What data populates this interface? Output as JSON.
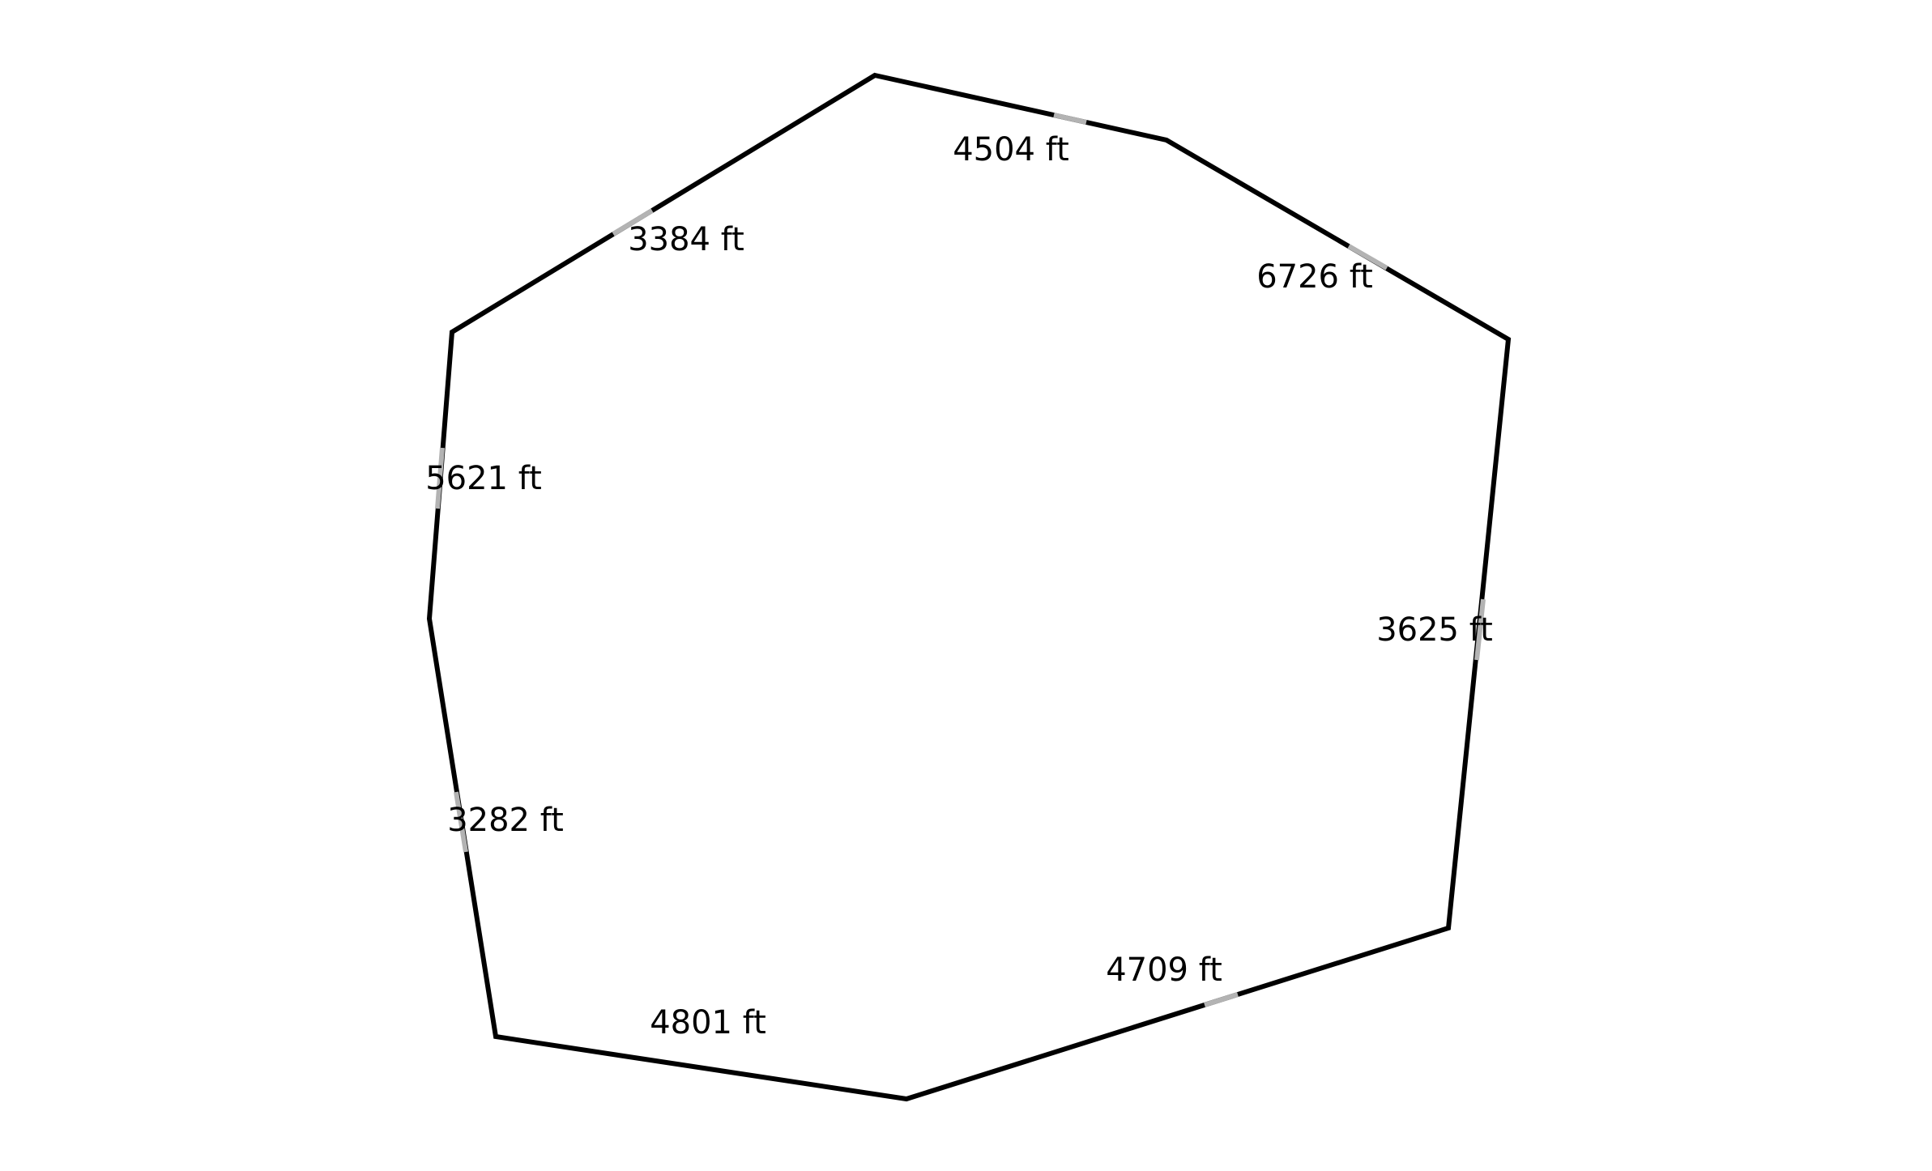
{
  "diagram": {
    "stroke_color": "#000000",
    "label_gap_color": "#b3b3b3",
    "edges": [
      {
        "label": "4504 ft"
      },
      {
        "label": "6726 ft"
      },
      {
        "label": "3625 ft"
      },
      {
        "label": "4709 ft"
      },
      {
        "label": "4801 ft"
      },
      {
        "label": "3282 ft"
      },
      {
        "label": "5621 ft"
      },
      {
        "label": "3384 ft"
      }
    ]
  }
}
